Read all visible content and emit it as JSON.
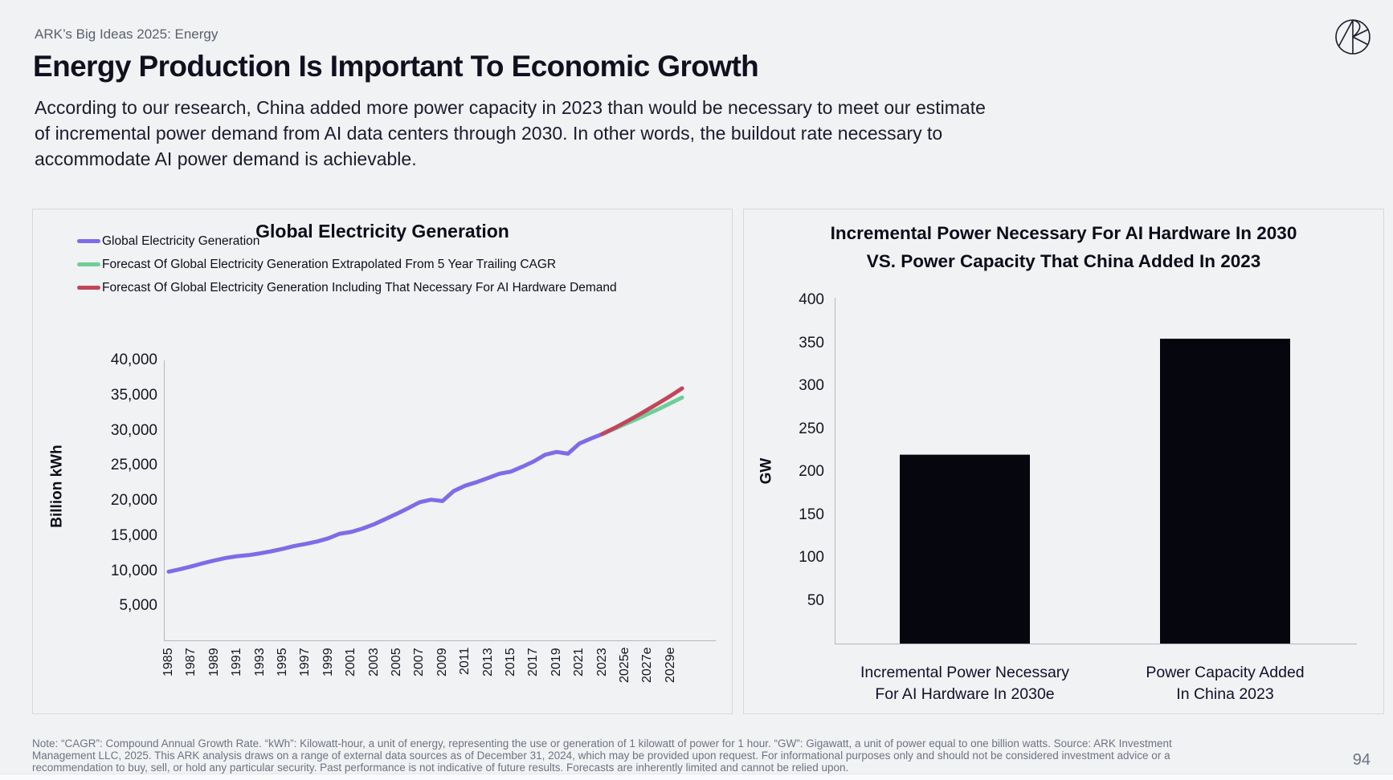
{
  "page": {
    "eyebrow": "ARK’s Big Ideas 2025: Energy",
    "title": "Energy Production Is Important To Economic Growth",
    "subtitle_lines": [
      "According to our research, China added more power capacity in 2023 than would be necessary to meet our estimate",
      "of incremental power demand from AI data centers through 2030. In other words, the buildout rate necessary to",
      "accommodate AI power demand is achievable."
    ],
    "footnote": "Note: “CAGR”: Compound Annual Growth Rate. “kWh”: Kilowatt-hour, a unit of energy, representing the use or generation of 1 kilowatt of power for 1 hour. “GW”: Gigawatt, a unit of power equal to one billion watts. Source: ARK Investment Management LLC, 2025. This ARK analysis draws on a range of external data sources as of December 31, 2024, which may be provided upon request. For informational purposes only and should not be considered investment advice or a recommendation to buy, sell, or hold any particular security. Past performance is not indicative of future results. Forecasts are inherently limited and cannot be relied upon.",
    "page_number": "94",
    "logo_icon": "ark-invest-logomark"
  },
  "colors": {
    "background": "#f1f2f4",
    "panel_border": "#d6d8dd",
    "axis": "#b4b7bf",
    "title_text": "#10101f",
    "muted_text": "#6e7382",
    "bar": "#06060f",
    "actual_line": "#7d6ce8",
    "forecast_cagr_line": "#6fce97",
    "forecast_ai_line": "#c2455a"
  },
  "chart_data": [
    {
      "type": "line",
      "title": "Global Electricity Generation",
      "xlabel": "",
      "ylabel": "Billion kWh",
      "ylim": [
        0,
        40000
      ],
      "x_start": 1985,
      "x_end": 2030,
      "grid": false,
      "legend_position": "top-left",
      "y_ticks": [
        5000,
        10000,
        15000,
        20000,
        25000,
        30000,
        35000,
        40000
      ],
      "x_tick_labels": [
        "1985",
        "1987",
        "1989",
        "1991",
        "1993",
        "1995",
        "1997",
        "1999",
        "2001",
        "2003",
        "2005",
        "2007",
        "2009",
        "2011",
        "2013",
        "2015",
        "2017",
        "2019",
        "2021",
        "2023",
        "2025e",
        "2027e",
        "2029e"
      ],
      "series": [
        {
          "name": "Global Electricity Generation",
          "color": "#7d6ce8",
          "x0": 1985,
          "values": [
            9900,
            10250,
            10650,
            11100,
            11500,
            11850,
            12100,
            12250,
            12500,
            12800,
            13150,
            13550,
            13850,
            14200,
            14650,
            15300,
            15550,
            16050,
            16650,
            17400,
            18150,
            18950,
            19800,
            20150,
            19950,
            21400,
            22150,
            22650,
            23250,
            23850,
            24150,
            24850,
            25600,
            26550,
            26950,
            26700,
            28150,
            28850,
            29500
          ]
        },
        {
          "name": "Forecast Of Global Electricity Generation Extrapolated From 5 Year Trailing CAGR",
          "color": "#6fce97",
          "x0": 2023,
          "values": [
            29500,
            30200,
            30900,
            31600,
            32350,
            33100,
            33900,
            34700
          ]
        },
        {
          "name": "Forecast Of Global Electricity Generation Including That Necessary For AI Hardware Demand",
          "color": "#c2455a",
          "x0": 2023,
          "values": [
            29500,
            30300,
            31150,
            32050,
            33000,
            33950,
            34950,
            36000
          ]
        }
      ]
    },
    {
      "type": "bar",
      "title_lines": [
        "Incremental Power Necessary For AI Hardware In 2030",
        "VS. Power Capacity That China Added In 2023"
      ],
      "xlabel": "",
      "ylabel": "GW",
      "ylim": [
        0,
        400
      ],
      "grid": false,
      "y_ticks": [
        50,
        100,
        150,
        200,
        250,
        300,
        350,
        400
      ],
      "categories": [
        "Incremental Power Necessary\nFor AI Hardware In 2030e",
        "Power Capacity Added\nIn China 2023"
      ],
      "values": [
        220,
        355
      ],
      "bar_color": "#06060f"
    }
  ]
}
